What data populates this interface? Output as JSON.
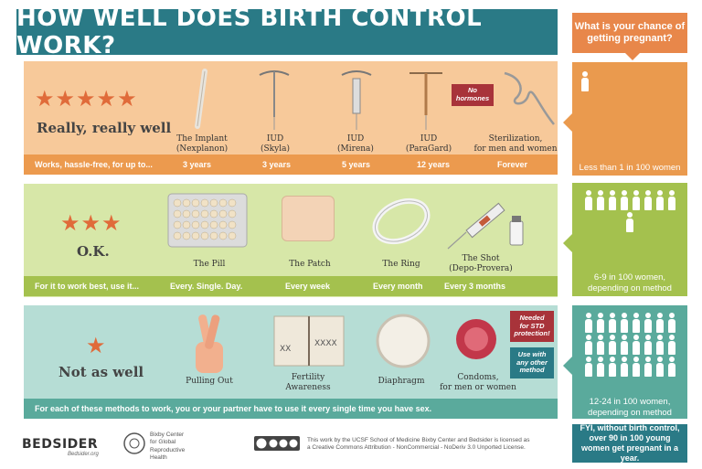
{
  "title": "HOW WELL DOES BIRTH CONTROL WORK?",
  "chance_question": "What is your chance of getting pregnant?",
  "tiers": [
    {
      "rating": "Really, really well",
      "stars": "★★★★★",
      "bar_text": "Works, hassle-free, for up to...",
      "methods": [
        {
          "name": "The Implant\n(Nexplanon)",
          "duration": "3 years"
        },
        {
          "name": "IUD\n(Skyla)",
          "duration": "3 years"
        },
        {
          "name": "IUD\n(Mirena)",
          "duration": "5 years"
        },
        {
          "name": "IUD\n(ParaGard)",
          "duration": "12 years"
        },
        {
          "name": "Sterilization,\nfor men and women",
          "duration": "Forever"
        }
      ],
      "badge": "No\nhormones",
      "chance": "Less than 1 in 100 women"
    },
    {
      "rating": "O.K.",
      "stars": "★★★",
      "bar_text": "For it to work best, use it...",
      "methods": [
        {
          "name": "The Pill",
          "duration": "Every. Single. Day."
        },
        {
          "name": "The Patch",
          "duration": "Every week"
        },
        {
          "name": "The Ring",
          "duration": "Every month"
        },
        {
          "name": "The Shot\n(Depo-Provera)",
          "duration": "Every 3 months"
        }
      ],
      "chance": "6-9 in 100 women,\ndepending on method"
    },
    {
      "rating": "Not as well",
      "stars": "★",
      "bar_text": "For each of these methods to work, you or your partner have to use it every single time you have sex.",
      "methods": [
        {
          "name": "Pulling Out"
        },
        {
          "name": "Fertility\nAwareness"
        },
        {
          "name": "Diaphragm"
        },
        {
          "name": "Condoms,\nfor men or women"
        }
      ],
      "badge_std": "Needed\nfor STD\nprotection!",
      "badge_other": "Use with\nany other\nmethod",
      "chance": "12-24 in 100 women,\ndepending on method"
    }
  ],
  "fyi": "FYI, without birth control, over 90 in 100 young women get pregnant in a year.",
  "footer": {
    "bedsider": "BEDSIDER",
    "bedsider_url": "Bedsider.org",
    "bixby": "Bixby Center\nfor Global\nReproductive\nHealth",
    "license": "This work by the UCSF School of Medicine Bixby Center and Bedsider is licensed as\na Creative Commons Attribution - NonCommercial - NoDeriv 3.0 Unported License."
  },
  "colors": {
    "teal": "#2a7a86",
    "orange": "#e8874a",
    "green": "#a4c14e",
    "seafoam": "#5aaa9c",
    "star": "#e06b3a"
  }
}
